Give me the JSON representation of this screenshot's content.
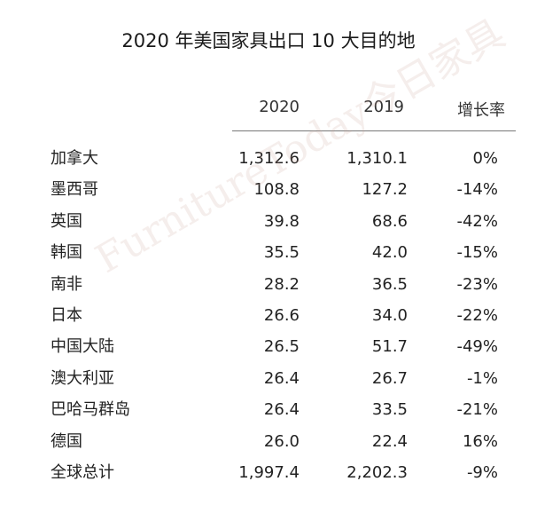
{
  "title": "2020 年美国家具出口 10 大目的地",
  "headers": [
    "2020",
    "2019",
    "增长率"
  ],
  "rows": [
    {
      "name": "加拿大",
      "v2020": "1,312.6",
      "v2019": "1,310.1",
      "growth": "0%"
    },
    {
      "name": "墨西哥",
      "v2020": "108.8",
      "v2019": "127.2",
      "growth": "-14%"
    },
    {
      "name": "英国",
      "v2020": "39.8",
      "v2019": "68.6",
      "growth": "-42%"
    },
    {
      "name": "韩国",
      "v2020": "35.5",
      "v2019": "42.0",
      "growth": "-15%"
    },
    {
      "name": "南非",
      "v2020": "28.2",
      "v2019": "36.5",
      "growth": "-23%"
    },
    {
      "name": "日本",
      "v2020": "26.6",
      "v2019": "34.0",
      "growth": "-22%"
    },
    {
      "name": "中国大陆",
      "v2020": "26.5",
      "v2019": "51.7",
      "growth": "-49%"
    },
    {
      "name": "澳大利亚",
      "v2020": "26.4",
      "v2019": "26.7",
      "growth": "-1%"
    },
    {
      "name": "巴哈马群岛",
      "v2020": "26.4",
      "v2019": "33.5",
      "growth": "-21%"
    },
    {
      "name": "德国",
      "v2020": "26.0",
      "v2019": "22.4",
      "growth": "16%"
    },
    {
      "name": "全球总计",
      "v2020": "1,997.4",
      "v2019": "2,202.3",
      "growth": "-9%"
    }
  ],
  "watermark": "FurnitureToday今日家具"
}
